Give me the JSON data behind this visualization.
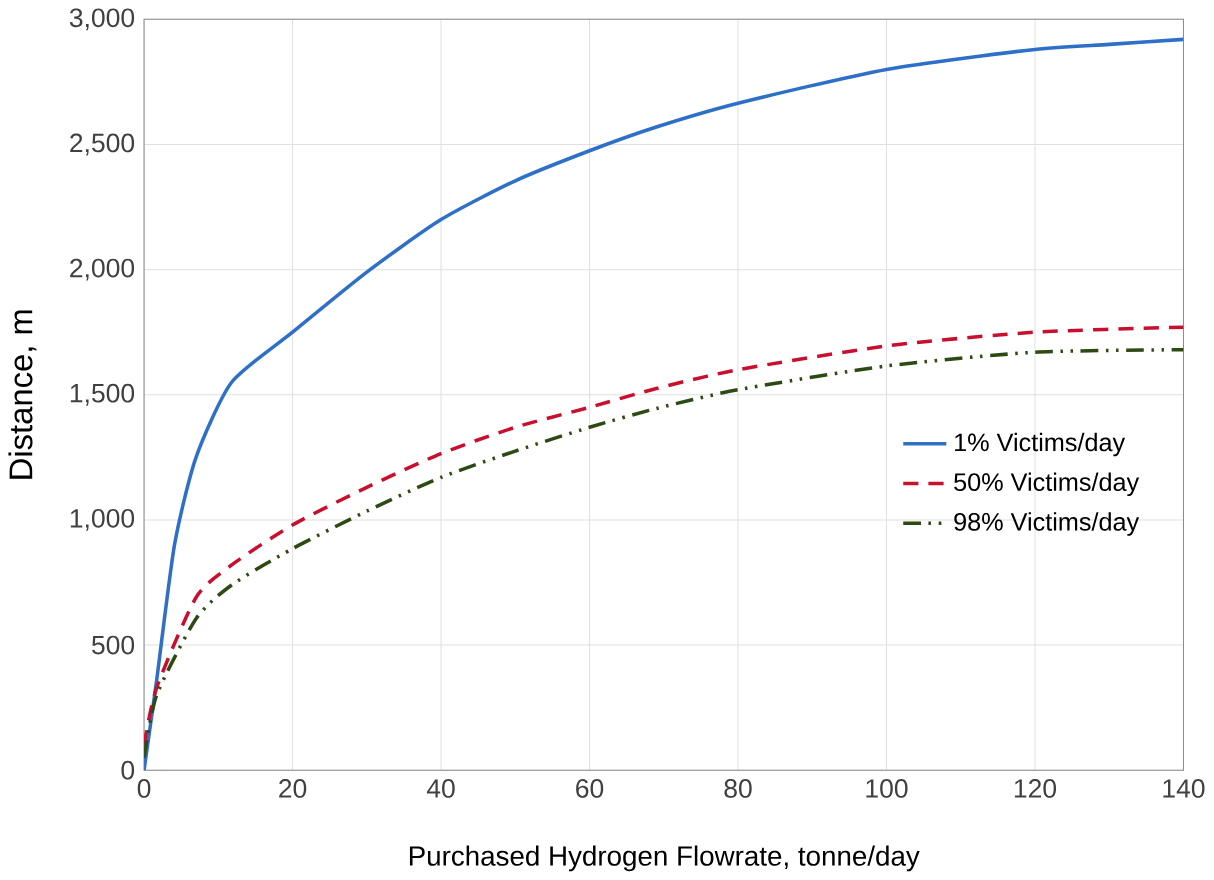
{
  "chart_data": {
    "type": "line",
    "xlabel": "Purchased Hydrogen Flowrate, tonne/day",
    "ylabel": "Distance, m",
    "xlim": [
      0,
      140
    ],
    "ylim": [
      0,
      3000
    ],
    "xticks": [
      0,
      20,
      40,
      60,
      80,
      100,
      120,
      140
    ],
    "yticks": [
      {
        "value": 0,
        "label": "0"
      },
      {
        "value": 500,
        "label": "500"
      },
      {
        "value": 1000,
        "label": "1,000"
      },
      {
        "value": 1500,
        "label": "1,500"
      },
      {
        "value": 2000,
        "label": "2,000"
      },
      {
        "value": 2500,
        "label": "2,500"
      },
      {
        "value": 3000,
        "label": "3,000"
      }
    ],
    "grid": true,
    "legend": "right",
    "marker": "none",
    "series": [
      {
        "name": "1% Victims/day",
        "color": "#2e6fc8",
        "line_style": "solid",
        "x": [
          0,
          1.7,
          4.1,
          7,
          11.8,
          20,
          30,
          40,
          50,
          60,
          69,
          80,
          100,
          120,
          130,
          140
        ],
        "values": [
          0,
          360,
          900,
          1250,
          1550,
          1750,
          1990,
          2200,
          2355,
          2475,
          2570,
          2665,
          2800,
          2880,
          2900,
          2920
        ]
      },
      {
        "name": "50% Victims/day",
        "color": "#c8102e",
        "line_style": "dashed",
        "x": [
          0,
          1.7,
          7,
          11.8,
          20,
          30,
          40,
          50,
          60,
          69,
          80,
          100,
          120,
          140
        ],
        "values": [
          100,
          330,
          690,
          820,
          980,
          1130,
          1265,
          1370,
          1450,
          1525,
          1600,
          1695,
          1750,
          1770
        ]
      },
      {
        "name": "98% Victims/day",
        "color": "#2d4a12",
        "line_style": "dashdotdot",
        "x": [
          0,
          1.7,
          7,
          11.8,
          20,
          30,
          40,
          50,
          60,
          69,
          80,
          100,
          120,
          140
        ],
        "values": [
          50,
          300,
          605,
          740,
          885,
          1035,
          1170,
          1275,
          1370,
          1445,
          1520,
          1615,
          1670,
          1680
        ]
      }
    ]
  }
}
